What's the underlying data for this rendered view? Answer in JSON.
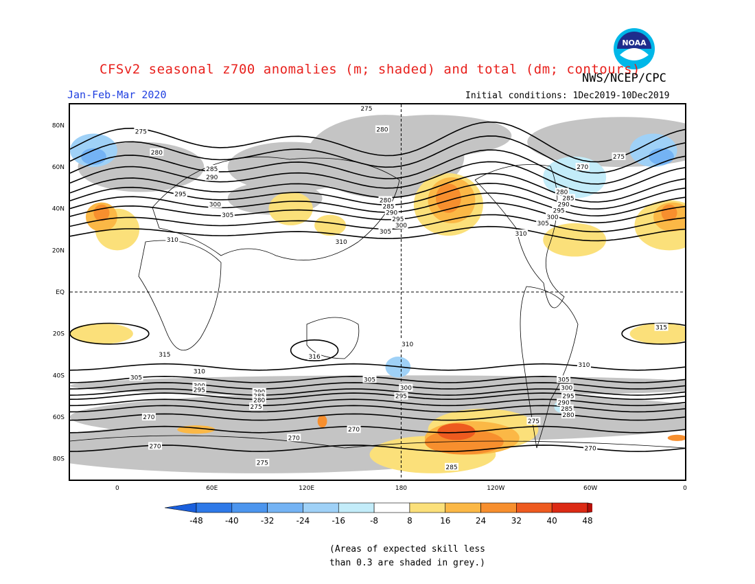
{
  "header": {
    "title": "CFSv2 seasonal z700 anomalies (m; shaded) and total (dm; contours)",
    "agency": "NWS/NCEP/CPC",
    "period": "Jan-Feb-Mar 2020",
    "initial_conditions": "Initial conditions: 1Dec2019-10Dec2019",
    "logo_text": "NOAA"
  },
  "map": {
    "lat_labels": [
      {
        "label": "80N",
        "lat": 80
      },
      {
        "label": "60N",
        "lat": 60
      },
      {
        "label": "40N",
        "lat": 40
      },
      {
        "label": "20N",
        "lat": 20
      },
      {
        "label": "EQ",
        "lat": 0
      },
      {
        "label": "20S",
        "lat": -20
      },
      {
        "label": "40S",
        "lat": -40
      },
      {
        "label": "60S",
        "lat": -60
      },
      {
        "label": "80S",
        "lat": -80
      }
    ],
    "lon_labels": [
      {
        "label": "0",
        "lon": 0
      },
      {
        "label": "60E",
        "lon": 60
      },
      {
        "label": "120E",
        "lon": 120
      },
      {
        "label": "180",
        "lon": 180
      },
      {
        "label": "120W",
        "lon": 240
      },
      {
        "label": "60W",
        "lon": 300
      },
      {
        "label": "0",
        "lon": 360
      }
    ],
    "lon_range": [
      -30,
      360
    ],
    "lat_range": [
      -90,
      90
    ],
    "contour_labels": [
      {
        "text": "275",
        "lon": 158,
        "lat": 88
      },
      {
        "text": "275",
        "lon": 15,
        "lat": 77
      },
      {
        "text": "280",
        "lon": 168,
        "lat": 78
      },
      {
        "text": "280",
        "lon": 25,
        "lat": 67
      },
      {
        "text": "275",
        "lon": 318,
        "lat": 65
      },
      {
        "text": "270",
        "lon": 295,
        "lat": 60
      },
      {
        "text": "285",
        "lon": 60,
        "lat": 59
      },
      {
        "text": "290",
        "lon": 60,
        "lat": 55
      },
      {
        "text": "295",
        "lon": 40,
        "lat": 47
      },
      {
        "text": "300",
        "lon": 62,
        "lat": 42
      },
      {
        "text": "305",
        "lon": 70,
        "lat": 37
      },
      {
        "text": "310",
        "lon": 35,
        "lat": 25
      },
      {
        "text": "310",
        "lon": 142,
        "lat": 24
      },
      {
        "text": "280",
        "lon": 170,
        "lat": 44
      },
      {
        "text": "285",
        "lon": 172,
        "lat": 41
      },
      {
        "text": "290",
        "lon": 174,
        "lat": 38
      },
      {
        "text": "295",
        "lon": 178,
        "lat": 35
      },
      {
        "text": "300",
        "lon": 180,
        "lat": 32
      },
      {
        "text": "305",
        "lon": 170,
        "lat": 29
      },
      {
        "text": "310",
        "lon": 256,
        "lat": 28
      },
      {
        "text": "280",
        "lon": 282,
        "lat": 48
      },
      {
        "text": "285",
        "lon": 286,
        "lat": 45
      },
      {
        "text": "290",
        "lon": 283,
        "lat": 42
      },
      {
        "text": "295",
        "lon": 280,
        "lat": 39
      },
      {
        "text": "300",
        "lon": 276,
        "lat": 36
      },
      {
        "text": "305",
        "lon": 270,
        "lat": 33
      },
      {
        "text": "310",
        "lon": 184,
        "lat": -25
      },
      {
        "text": "315",
        "lon": 345,
        "lat": -17
      },
      {
        "text": "316",
        "lon": 125,
        "lat": -31
      },
      {
        "text": "315",
        "lon": 30,
        "lat": -30
      },
      {
        "text": "310",
        "lon": 296,
        "lat": -35
      },
      {
        "text": "310",
        "lon": 52,
        "lat": -38
      },
      {
        "text": "305",
        "lon": 12,
        "lat": -41
      },
      {
        "text": "305",
        "lon": 160,
        "lat": -42
      },
      {
        "text": "305",
        "lon": 283,
        "lat": -42
      },
      {
        "text": "300",
        "lon": 52,
        "lat": -45
      },
      {
        "text": "295",
        "lon": 52,
        "lat": -47
      },
      {
        "text": "300",
        "lon": 183,
        "lat": -46
      },
      {
        "text": "300",
        "lon": 285,
        "lat": -46
      },
      {
        "text": "295",
        "lon": 180,
        "lat": -50
      },
      {
        "text": "295",
        "lon": 286,
        "lat": -50
      },
      {
        "text": "290",
        "lon": 90,
        "lat": -48
      },
      {
        "text": "285",
        "lon": 90,
        "lat": -50
      },
      {
        "text": "280",
        "lon": 90,
        "lat": -52
      },
      {
        "text": "275",
        "lon": 88,
        "lat": -55
      },
      {
        "text": "290",
        "lon": 283,
        "lat": -53
      },
      {
        "text": "285",
        "lon": 285,
        "lat": -56
      },
      {
        "text": "280",
        "lon": 286,
        "lat": -59
      },
      {
        "text": "275",
        "lon": 264,
        "lat": -62
      },
      {
        "text": "270",
        "lon": 20,
        "lat": -60
      },
      {
        "text": "270",
        "lon": 112,
        "lat": -70
      },
      {
        "text": "270",
        "lon": 150,
        "lat": -66
      },
      {
        "text": "270",
        "lon": 24,
        "lat": -74
      },
      {
        "text": "270",
        "lon": 300,
        "lat": -75
      },
      {
        "text": "275",
        "lon": 92,
        "lat": -82
      },
      {
        "text": "285",
        "lon": 212,
        "lat": -84
      }
    ],
    "anomaly_patches": [
      {
        "level": 16,
        "lon": 210,
        "lat": 42,
        "rx": 22,
        "ry": 15
      },
      {
        "level": 24,
        "lon": 212,
        "lat": 44,
        "rx": 15,
        "ry": 11
      },
      {
        "level": 32,
        "lon": 210,
        "lat": 45,
        "rx": 8,
        "ry": 7
      },
      {
        "level": 16,
        "lon": 350,
        "lat": 32,
        "rx": 22,
        "ry": 12
      },
      {
        "level": 24,
        "lon": 352,
        "lat": 36,
        "rx": 12,
        "ry": 7
      },
      {
        "level": 32,
        "lon": 350,
        "lat": 38,
        "rx": 5,
        "ry": 4
      },
      {
        "level": 16,
        "lon": 0,
        "lat": 30,
        "rx": 14,
        "ry": 10
      },
      {
        "level": 24,
        "lon": -10,
        "lat": 36,
        "rx": 10,
        "ry": 7
      },
      {
        "level": 32,
        "lon": -10,
        "lat": 38,
        "rx": 5,
        "ry": 4
      },
      {
        "level": 16,
        "lon": 110,
        "lat": 40,
        "rx": 14,
        "ry": 8
      },
      {
        "level": 16,
        "lon": 135,
        "lat": 32,
        "rx": 10,
        "ry": 5
      },
      {
        "level": 16,
        "lon": 290,
        "lat": 25,
        "rx": 20,
        "ry": 8
      },
      {
        "level": 16,
        "lon": 345,
        "lat": -20,
        "rx": 20,
        "ry": 5
      },
      {
        "level": 16,
        "lon": -10,
        "lat": -20,
        "rx": 20,
        "ry": 5
      },
      {
        "level": 16,
        "lon": 200,
        "lat": -78,
        "rx": 40,
        "ry": 9
      },
      {
        "level": 16,
        "lon": 232,
        "lat": -66,
        "rx": 35,
        "ry": 10
      },
      {
        "level": 24,
        "lon": 225,
        "lat": -70,
        "rx": 30,
        "ry": 8
      },
      {
        "level": 32,
        "lon": 220,
        "lat": -72,
        "rx": 25,
        "ry": 6
      },
      {
        "level": 40,
        "lon": 215,
        "lat": -67,
        "rx": 12,
        "ry": 4
      },
      {
        "level": 24,
        "lon": 50,
        "lat": -66,
        "rx": 12,
        "ry": 2
      },
      {
        "level": 32,
        "lon": 130,
        "lat": -62,
        "rx": 3,
        "ry": 3
      },
      {
        "level": 32,
        "lon": 355,
        "lat": -70,
        "rx": 6,
        "ry": 1.5
      },
      {
        "level": -16,
        "lon": -15,
        "lat": 68,
        "rx": 15,
        "ry": 8
      },
      {
        "level": -24,
        "lon": -15,
        "lat": 65,
        "rx": 8,
        "ry": 4
      },
      {
        "level": -16,
        "lon": 340,
        "lat": 68,
        "rx": 15,
        "ry": 8
      },
      {
        "level": -24,
        "lon": 345,
        "lat": 65,
        "rx": 8,
        "ry": 4
      },
      {
        "level": -8,
        "lon": 290,
        "lat": 55,
        "rx": 20,
        "ry": 10
      },
      {
        "level": -16,
        "lon": 178,
        "lat": -36,
        "rx": 8,
        "ry": 5
      },
      {
        "level": -8,
        "lon": 282,
        "lat": -55,
        "rx": 5,
        "ry": 3
      }
    ],
    "grey_regions": [
      {
        "lon": 15,
        "lat": 60,
        "rx": 40,
        "ry": 12
      },
      {
        "lon": 170,
        "lat": 65,
        "rx": 50,
        "ry": 20
      },
      {
        "lon": 110,
        "lat": 60,
        "rx": 40,
        "ry": 12
      },
      {
        "lon": 320,
        "lat": 72,
        "rx": 60,
        "ry": 12
      },
      {
        "lon": 200,
        "lat": 75,
        "rx": 50,
        "ry": 10
      },
      {
        "lon": 100,
        "lat": 45,
        "rx": 30,
        "ry": 8
      },
      {
        "lon": 180,
        "lat": -60,
        "rx": 210,
        "ry": 12
      },
      {
        "lon": 90,
        "lat": -75,
        "rx": 150,
        "ry": 12
      },
      {
        "lon": 180,
        "lat": -45,
        "rx": 210,
        "ry": 5
      }
    ],
    "colorbar": {
      "colors": [
        "#1a5fdc",
        "#2e79e8",
        "#4c95ee",
        "#74b3f4",
        "#9fd1f7",
        "#c3ecf9",
        "#ffffff",
        "#fbe07a",
        "#fbb846",
        "#f78f2e",
        "#ee5a1f",
        "#dc2a14",
        "#b41008"
      ],
      "labels": [
        "-48",
        "-40",
        "-32",
        "-24",
        "-16",
        "-8",
        "8",
        "16",
        "24",
        "32",
        "40",
        "48"
      ]
    }
  },
  "notes": {
    "line1": "(Areas of expected skill less",
    "line2": "than 0.3 are shaded in grey.)"
  }
}
